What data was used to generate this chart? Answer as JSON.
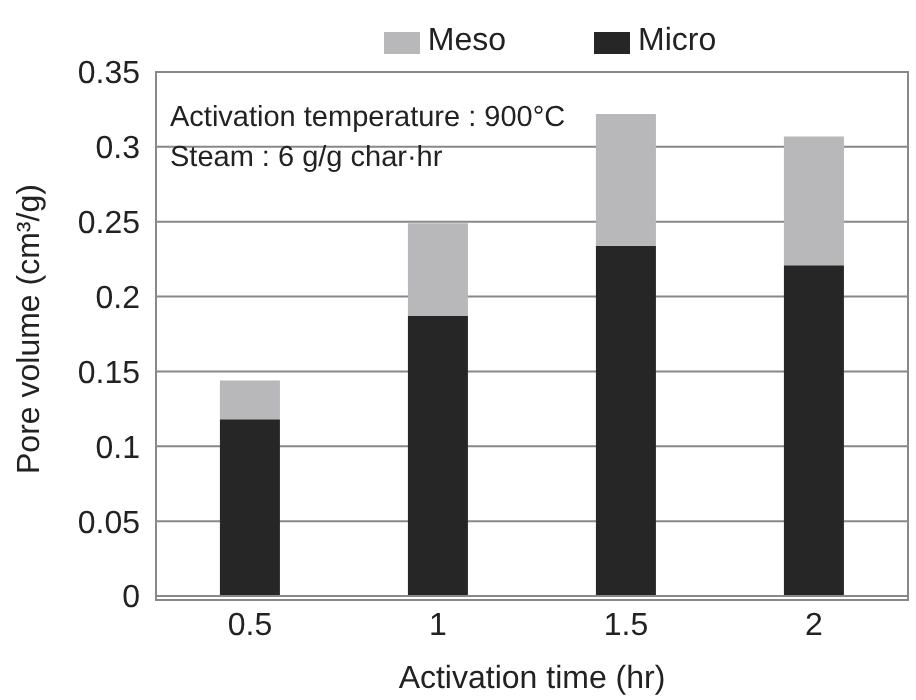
{
  "chart_data": {
    "type": "bar",
    "stacked": true,
    "xlabel": "Activation time (hr)",
    "ylabel": "Pore volume (cm³/g)",
    "categories": [
      "0.5",
      "1",
      "1.5",
      "2"
    ],
    "series": [
      {
        "name": "Micro",
        "color": "#262626",
        "values": [
          0.118,
          0.187,
          0.234,
          0.221
        ]
      },
      {
        "name": "Meso",
        "color": "#b8b8ba",
        "values": [
          0.026,
          0.062,
          0.088,
          0.086
        ]
      }
    ],
    "ylim": [
      0,
      0.35
    ],
    "yticks": [
      0,
      {
        "value": 0.05,
        "label": "0.05"
      },
      {
        "value": 0.1,
        "label": "0.1"
      },
      {
        "value": 0.15,
        "label": "0.15"
      },
      {
        "value": 0.2,
        "label": "0.2"
      },
      {
        "value": 0.25,
        "label": "0.25"
      },
      {
        "value": 0.3,
        "label": "0.3"
      },
      {
        "value": 0.35,
        "label": "0.35"
      }
    ],
    "grid": "y",
    "legend": "top",
    "annotations": [
      "Activation temperature : 900°C",
      "Steam : 6 g/g char·hr"
    ]
  }
}
